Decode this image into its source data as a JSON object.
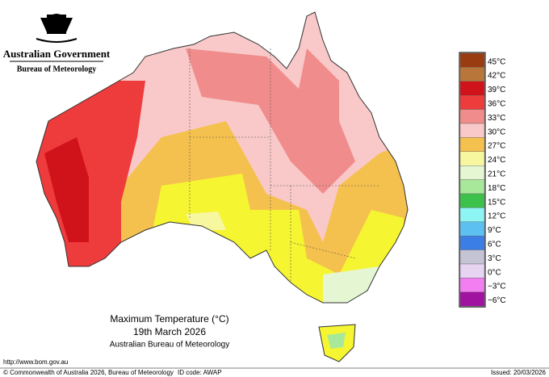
{
  "header": {
    "government": "Australian Government",
    "agency": "Bureau of Meteorology"
  },
  "map_title": {
    "line1": "Maximum Temperature (°C)",
    "line2": "19th March 2026",
    "line3": "Australian Bureau of Meteorology"
  },
  "legend": [
    {
      "label": "45°C",
      "color": "#9a3c12"
    },
    {
      "label": "42°C",
      "color": "#b8763a"
    },
    {
      "label": "39°C",
      "color": "#d0121a"
    },
    {
      "label": "36°C",
      "color": "#ee3b3b"
    },
    {
      "label": "33°C",
      "color": "#f08c8c"
    },
    {
      "label": "30°C",
      "color": "#f9c8c8"
    },
    {
      "label": "27°C",
      "color": "#f5c14e"
    },
    {
      "label": "24°C",
      "color": "#f7f7a0"
    },
    {
      "label": "21°C",
      "color": "#e4f7d2"
    },
    {
      "label": "18°C",
      "color": "#a8e89a"
    },
    {
      "label": "15°C",
      "color": "#3cc24a"
    },
    {
      "label": "12°C",
      "color": "#8ef5f5"
    },
    {
      "label": "9°C",
      "color": "#5cc0f0"
    },
    {
      "label": "6°C",
      "color": "#3a7ee6"
    },
    {
      "label": "3°C",
      "color": "#c4c4d4"
    },
    {
      "label": "0°C",
      "color": "#e6d4f2"
    },
    {
      "label": "−3°C",
      "color": "#f27ef2"
    },
    {
      "label": "−6°C",
      "color": "#a012a0"
    }
  ],
  "footer": {
    "url": "http://www.bom.gov.au",
    "copyright": "© Commonwealth of Australia 2026, Bureau of Meteorology",
    "id_code": "ID code: AWAP",
    "issued": "Issued: 20/03/2026"
  }
}
